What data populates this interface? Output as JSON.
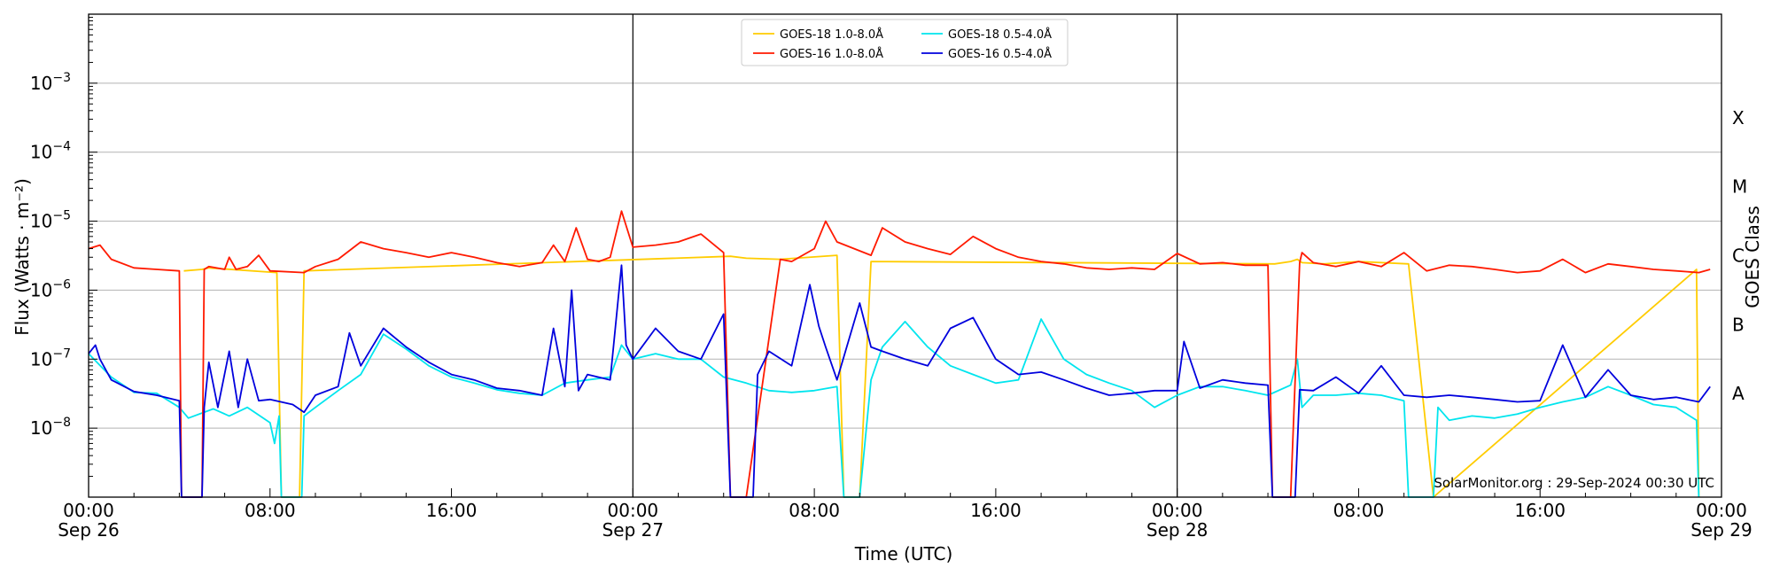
{
  "chart_data": {
    "type": "line",
    "ylabel": "Flux (Watts · m⁻²)",
    "xlabel": "Time (UTC)",
    "right_label": "GOES Class",
    "credit": "SolarMonitor.org : 29-Sep-2024 00:30 UTC",
    "y_scale": "log",
    "ylim": [
      1e-09,
      0.01
    ],
    "y_ticks": [
      {
        "exp": -8,
        "label": "10",
        "sup": "−8"
      },
      {
        "exp": -7,
        "label": "10",
        "sup": "−7"
      },
      {
        "exp": -6,
        "label": "10",
        "sup": "−6"
      },
      {
        "exp": -5,
        "label": "10",
        "sup": "−5"
      },
      {
        "exp": -4,
        "label": "10",
        "sup": "−4"
      },
      {
        "exp": -3,
        "label": "10",
        "sup": "−3"
      }
    ],
    "gridlines_exp": [
      -8,
      -7,
      -6,
      -5,
      -4,
      -3
    ],
    "goes_classes": [
      {
        "label": "A",
        "exp": -7.5
      },
      {
        "label": "B",
        "exp": -6.5
      },
      {
        "label": "C",
        "exp": -5.5
      },
      {
        "label": "M",
        "exp": -4.5
      },
      {
        "label": "X",
        "exp": -3.5
      }
    ],
    "x_range_hours": [
      0,
      72
    ],
    "x_ticks": [
      {
        "h": 0,
        "time": "00:00",
        "date": "Sep 26"
      },
      {
        "h": 8,
        "time": "08:00",
        "date": ""
      },
      {
        "h": 16,
        "time": "16:00",
        "date": ""
      },
      {
        "h": 24,
        "time": "00:00",
        "date": "Sep 27"
      },
      {
        "h": 32,
        "time": "08:00",
        "date": ""
      },
      {
        "h": 40,
        "time": "16:00",
        "date": ""
      },
      {
        "h": 48,
        "time": "00:00",
        "date": "Sep 28"
      },
      {
        "h": 56,
        "time": "08:00",
        "date": ""
      },
      {
        "h": 64,
        "time": "16:00",
        "date": ""
      },
      {
        "h": 72,
        "time": "00:00",
        "date": "Sep 29"
      }
    ],
    "day_dividers": [
      24,
      48
    ],
    "legend": [
      {
        "name": "GOES-18 1.0-8.0Å",
        "color": "#ffcc00"
      },
      {
        "name": "GOES-18 0.5-4.0Å",
        "color": "#00e5ee"
      },
      {
        "name": "GOES-16 1.0-8.0Å",
        "color": "#ff1a00"
      },
      {
        "name": "GOES-16 0.5-4.0Å",
        "color": "#0000dd"
      }
    ],
    "series": [
      {
        "name": "GOES-18 1.0-8.0Å",
        "color": "#ffcc00",
        "x": [
          4.2,
          5.0,
          5.3,
          8.3,
          8.5,
          9.3,
          9.5,
          28.3,
          29.0,
          30.5,
          33.0,
          33.3,
          34.0,
          34.5,
          52.3,
          53.0,
          53.3,
          53.5,
          54.5,
          56.0,
          58.2,
          59.3,
          70.9,
          71.0
        ],
        "y": [
          1.9e-06,
          2e-06,
          2.1e-06,
          1.8e-06,
          1e-09,
          1e-09,
          1.9e-06,
          3.1e-06,
          2.9e-06,
          2.8e-06,
          3.2e-06,
          1e-09,
          1e-09,
          2.6e-06,
          2.4e-06,
          2.6e-06,
          2.8e-06,
          2.5e-06,
          2.4e-06,
          2.6e-06,
          2.4e-06,
          1e-09,
          2e-06,
          1e-09
        ]
      },
      {
        "name": "GOES-18 0.5-4.0Å",
        "color": "#00e5ee",
        "x": [
          0,
          1,
          2,
          3,
          4,
          4.4,
          5.5,
          6.2,
          7,
          8,
          8.2,
          8.4,
          8.5,
          9.4,
          9.5,
          10.0,
          11,
          12,
          13,
          14,
          15,
          16,
          17,
          18,
          19,
          20,
          21,
          22,
          23,
          23.5,
          24,
          25,
          26,
          27,
          28,
          29,
          30,
          31,
          32,
          33,
          33.3,
          34.0,
          34.5,
          35,
          36,
          37,
          38,
          39,
          40,
          41,
          42,
          43,
          44,
          45,
          46,
          47,
          48,
          49,
          50,
          51,
          52,
          53,
          53.3,
          53.5,
          54,
          55,
          56,
          57,
          58,
          58.2,
          59.3,
          59.5,
          60,
          61,
          62,
          63,
          64,
          65,
          66,
          67,
          68,
          69,
          70,
          70.9,
          71.0
        ],
        "y": [
          1.2e-07,
          5.5e-08,
          3.3e-08,
          3.2e-08,
          2e-08,
          1.4e-08,
          1.9e-08,
          1.5e-08,
          2e-08,
          1.2e-08,
          6e-09,
          1.5e-08,
          1e-09,
          1e-09,
          1.5e-08,
          2e-08,
          3.5e-08,
          6e-08,
          2.3e-07,
          1.4e-07,
          8e-08,
          5.5e-08,
          4.5e-08,
          3.6e-08,
          3.2e-08,
          3e-08,
          4.5e-08,
          5e-08,
          5.5e-08,
          1.6e-07,
          1e-07,
          1.2e-07,
          1e-07,
          1e-07,
          5.5e-08,
          4.5e-08,
          3.5e-08,
          3.3e-08,
          3.5e-08,
          4e-08,
          1e-09,
          1e-09,
          5e-08,
          1.5e-07,
          3.5e-07,
          1.5e-07,
          8e-08,
          6e-08,
          4.5e-08,
          5e-08,
          3.8e-07,
          1e-07,
          6e-08,
          4.5e-08,
          3.5e-08,
          2e-08,
          3e-08,
          4e-08,
          4e-08,
          3.5e-08,
          3e-08,
          4.2e-08,
          1e-07,
          2e-08,
          3e-08,
          3e-08,
          3.2e-08,
          3e-08,
          2.5e-08,
          1e-09,
          1e-09,
          2e-08,
          1.3e-08,
          1.5e-08,
          1.4e-08,
          1.6e-08,
          2e-08,
          2.4e-08,
          2.8e-08,
          4e-08,
          3e-08,
          2.2e-08,
          2e-08,
          1.3e-08,
          1e-09
        ]
      },
      {
        "name": "GOES-16 1.0-8.0Å",
        "color": "#ff1a00",
        "x": [
          0,
          0.5,
          1,
          2,
          3,
          4.0,
          4.1,
          4.2,
          5.0,
          5.1,
          5.3,
          6.0,
          6.2,
          6.5,
          7.0,
          7.5,
          8.0,
          9.5,
          10,
          11,
          12,
          13,
          14,
          15,
          16,
          17,
          18,
          19,
          20,
          20.5,
          21,
          21.5,
          22,
          22.5,
          23,
          23.5,
          24,
          25,
          26,
          27,
          28,
          28.3,
          29.0,
          30.5,
          31.0,
          32,
          32.5,
          33,
          34.5,
          35,
          36,
          37,
          38,
          39,
          40,
          41,
          42,
          43,
          44,
          45,
          46,
          47,
          48,
          49,
          50,
          51,
          52,
          52.2,
          53.0,
          53.4,
          53.5,
          54,
          55,
          56,
          57,
          58,
          59,
          60,
          61,
          62,
          63,
          64,
          65,
          66,
          67,
          68,
          69,
          70,
          71,
          71.5
        ],
        "y": [
          4e-06,
          4.5e-06,
          2.8e-06,
          2.1e-06,
          2e-06,
          1.9e-06,
          1e-09,
          1e-09,
          1e-09,
          2e-06,
          2.2e-06,
          2e-06,
          3e-06,
          2e-06,
          2.2e-06,
          3.2e-06,
          1.9e-06,
          1.8e-06,
          2.2e-06,
          2.8e-06,
          5e-06,
          4e-06,
          3.5e-06,
          3e-06,
          3.5e-06,
          3e-06,
          2.5e-06,
          2.2e-06,
          2.5e-06,
          4.5e-06,
          2.6e-06,
          8e-06,
          2.8e-06,
          2.6e-06,
          3e-06,
          1.4e-05,
          4.2e-06,
          4.5e-06,
          5e-06,
          6.5e-06,
          3.5e-06,
          1e-09,
          1e-09,
          2.8e-06,
          2.6e-06,
          4e-06,
          1e-05,
          5e-06,
          3.2e-06,
          8e-06,
          5e-06,
          4e-06,
          3.3e-06,
          6e-06,
          4e-06,
          3e-06,
          2.6e-06,
          2.4e-06,
          2.1e-06,
          2e-06,
          2.1e-06,
          2e-06,
          3.4e-06,
          2.4e-06,
          2.5e-06,
          2.3e-06,
          2.3e-06,
          1e-09,
          1e-09,
          2.5e-06,
          3.5e-06,
          2.5e-06,
          2.2e-06,
          2.6e-06,
          2.2e-06,
          3.5e-06,
          1.9e-06,
          2.3e-06,
          2.2e-06,
          2e-06,
          1.8e-06,
          1.9e-06,
          2.8e-06,
          1.8e-06,
          2.4e-06,
          2.2e-06,
          2e-06,
          1.9e-06,
          1.8e-06,
          2e-06
        ]
      },
      {
        "name": "GOES-16 0.5-4.0Å",
        "color": "#0000dd",
        "x": [
          0,
          0.3,
          0.5,
          1,
          2,
          3,
          4.0,
          4.1,
          4.2,
          5.0,
          5.1,
          5.3,
          5.7,
          6.2,
          6.6,
          7.0,
          7.5,
          8.0,
          9.0,
          9.5,
          10,
          11,
          11.5,
          12,
          13,
          14,
          15,
          16,
          17,
          18,
          19,
          20,
          20.5,
          21,
          21.3,
          21.6,
          22,
          23,
          23.5,
          23.7,
          24,
          25,
          26,
          27,
          28,
          28.3,
          28.4,
          29.3,
          29.5,
          30,
          31,
          31.8,
          32.2,
          32.5,
          33,
          34,
          34.5,
          35,
          36,
          37,
          38,
          39,
          40,
          41,
          42,
          43,
          44,
          45,
          46,
          47,
          48,
          48.3,
          49,
          50,
          51,
          52,
          52.2,
          53.2,
          53.4,
          54,
          55,
          56,
          57,
          58,
          59,
          60,
          61,
          62,
          63,
          64,
          65,
          66,
          67,
          68,
          69,
          70,
          71,
          71.5
        ],
        "y": [
          1.2e-07,
          1.6e-07,
          1e-07,
          5e-08,
          3.4e-08,
          3e-08,
          2.5e-08,
          1e-09,
          1e-09,
          1e-09,
          2e-08,
          9e-08,
          2e-08,
          1.3e-07,
          2e-08,
          1e-07,
          2.5e-08,
          2.6e-08,
          2.2e-08,
          1.7e-08,
          3e-08,
          4e-08,
          2.4e-07,
          8e-08,
          2.8e-07,
          1.5e-07,
          9e-08,
          6e-08,
          5e-08,
          3.8e-08,
          3.5e-08,
          3e-08,
          2.8e-07,
          4e-08,
          1e-06,
          3.5e-08,
          6e-08,
          5e-08,
          2.3e-06,
          1.6e-07,
          1e-07,
          2.8e-07,
          1.3e-07,
          1e-07,
          4.5e-07,
          1e-09,
          1e-09,
          1e-09,
          6e-08,
          1.3e-07,
          8e-08,
          1.2e-06,
          3e-07,
          1.5e-07,
          5e-08,
          6.5e-07,
          1.5e-07,
          1.3e-07,
          1e-07,
          8e-08,
          2.8e-07,
          4e-07,
          1e-07,
          6e-08,
          6.5e-08,
          5e-08,
          3.8e-08,
          3e-08,
          3.2e-08,
          3.5e-08,
          3.5e-08,
          1.8e-07,
          3.8e-08,
          5e-08,
          4.5e-08,
          4.2e-08,
          1e-09,
          1e-09,
          3.6e-08,
          3.5e-08,
          5.5e-08,
          3.2e-08,
          8e-08,
          3e-08,
          2.8e-08,
          3e-08,
          2.8e-08,
          2.6e-08,
          2.4e-08,
          2.5e-08,
          1.6e-07,
          2.8e-08,
          7e-08,
          3e-08,
          2.6e-08,
          2.8e-08,
          2.4e-08,
          4e-08
        ]
      }
    ]
  }
}
